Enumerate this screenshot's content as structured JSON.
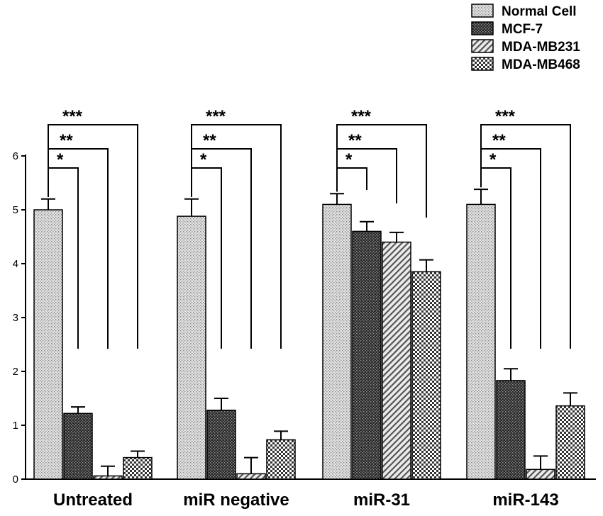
{
  "chart_data": {
    "type": "bar",
    "title": "",
    "xlabel": "",
    "ylabel": "",
    "ylim": [
      0,
      6
    ],
    "y_ticks": [
      "0",
      "1",
      "2",
      "3",
      "4",
      "5",
      "6"
    ],
    "categories": [
      "Untreated",
      "miR negative",
      "miR-31",
      "miR-143"
    ],
    "series": [
      {
        "name": "Normal Cell",
        "values": [
          5.0,
          4.88,
          5.1,
          5.1
        ],
        "errors": [
          0.2,
          0.32,
          0.2,
          0.28
        ],
        "pattern": "dotted-light"
      },
      {
        "name": "MCF-7",
        "values": [
          1.22,
          1.28,
          4.6,
          1.83
        ],
        "errors": [
          0.12,
          0.22,
          0.18,
          0.22
        ],
        "pattern": "dotted-dark"
      },
      {
        "name": "MDA-MB231",
        "values": [
          0.06,
          0.1,
          4.4,
          0.18
        ],
        "errors": [
          0.18,
          0.3,
          0.18,
          0.25
        ],
        "pattern": "diagonal"
      },
      {
        "name": "MDA-MB468",
        "values": [
          0.4,
          0.73,
          3.85,
          1.36
        ],
        "errors": [
          0.12,
          0.16,
          0.22,
          0.24
        ],
        "pattern": "checker"
      }
    ],
    "significance": [
      {
        "label": "*",
        "from_series": 0,
        "to_series": 1
      },
      {
        "label": "**",
        "from_series": 0,
        "to_series": 2
      },
      {
        "label": "***",
        "from_series": 0,
        "to_series": 3
      }
    ],
    "legend_position": "top-right",
    "grid": false,
    "colors": {
      "bar_edge": "#000000",
      "light_fill": "#d9d9d9",
      "dark_fill": "#3a3a3a"
    }
  }
}
